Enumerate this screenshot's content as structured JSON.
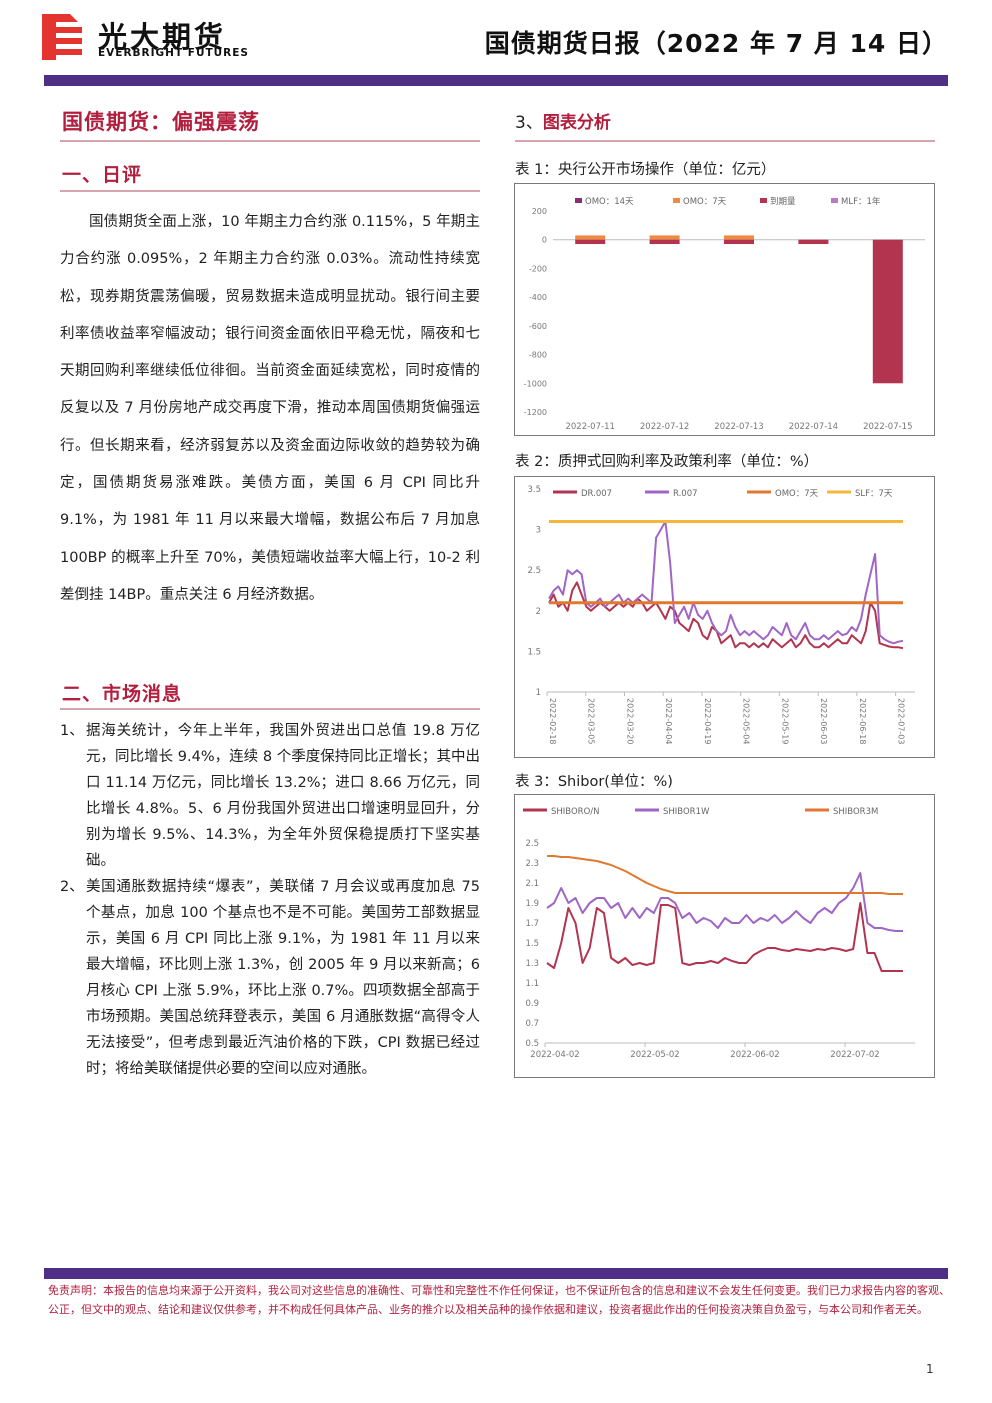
{
  "header": {
    "brand_cn": "光大期货",
    "brand_en": "EVERBRIGHT FUTURES",
    "doc_title": "国债期货日报（2022 年 7 月 14 日）"
  },
  "left": {
    "main_title": "国债期货：偏强震荡",
    "review_heading": "一、日评",
    "review_text": "国债期货全面上涨，10 年期主力合约涨 0.115%，5 年期主力合约涨 0.095%，2 年期主力合约涨 0.03%。流动性持续宽松，现券期货震荡偏暖，贸易数据未造成明显扰动。银行间主要利率债收益率窄幅波动；银行间资金面依旧平稳无忧，隔夜和七天期回购利率继续低位徘徊。当前资金面延续宽松，同时疫情的反复以及 7 月份房地产成交再度下滑，推动本周国债期货偏强运行。但长期来看，经济弱复苏以及资金面边际收敛的趋势较为确定，国债期货易涨难跌。美债方面，美国 6 月 CPI 同比升 9.1%，为 1981 年 11 月以来最大增幅，数据公布后 7 月加息 100BP 的概率上升至 70%，美债短端收益率大幅上行，10-2 利差倒挂 14BP。重点关注 6 月经济数据。",
    "news_heading": "二、市场消息",
    "news": [
      {
        "num": "1、",
        "text": "据海关统计，今年上半年，我国外贸进出口总值 19.8 万亿元，同比增长 9.4%，连续 8 个季度保持同比正增长；其中出口 11.14 万亿元，同比增长 13.2%；进口 8.66 万亿元，同比增长 4.8%。5、6 月份我国外贸进出口增速明显回升，分别为增长 9.5%、14.3%，为全年外贸保稳提质打下坚实基础。"
      },
      {
        "num": "2、",
        "text": "美国通胀数据持续“爆表”，美联储 7 月会议或再度加息 75 个基点，加息 100 个基点也不是不可能。美国劳工部数据显示，美国 6 月 CPI 同比上涨 9.1%，为 1981 年 11 月以来最大增幅，环比则上涨 1.3%，创 2005 年 9 月以来新高；6 月核心 CPI 上涨 5.9%，环比上涨 0.7%。四项数据全部高于市场预期。美国总统拜登表示，美国 6 月通胀数据“高得令人无法接受”，但考虑到最近汽油价格的下跌，CPI 数据已经过时；将给美联储提供必要的空间以应对通胀。"
      }
    ]
  },
  "right": {
    "section_num": "3、",
    "section_title": "图表分析"
  },
  "chart_data": [
    {
      "type": "bar",
      "title": "表 1：央行公开市场操作（单位：亿元）",
      "categories": [
        "2022-07-11",
        "2022-07-12",
        "2022-07-13",
        "2022-07-14",
        "2022-07-15"
      ],
      "series": [
        {
          "name": "OMO：14天",
          "color": "#8a2c78",
          "values": [
            0,
            0,
            0,
            0,
            0
          ]
        },
        {
          "name": "OMO：7天",
          "color": "#ef8a43",
          "values": [
            30,
            30,
            30,
            0,
            0
          ]
        },
        {
          "name": "到期量",
          "color": "#b2344f",
          "values": [
            -30,
            -30,
            -30,
            -30,
            -1000
          ]
        },
        {
          "name": "MLF：1年",
          "color": "#b77ac9",
          "values": [
            0,
            0,
            0,
            0,
            0
          ]
        }
      ],
      "ylim": [
        -1200,
        200
      ],
      "yticks": [
        200,
        0,
        -200,
        -400,
        -600,
        -800,
        -1000,
        -1200
      ],
      "legend": "top",
      "grid": false
    },
    {
      "type": "line",
      "title": "表 2：质押式回购利率及政策利率（单位：%）",
      "xticks": [
        "2022-02-18",
        "2022-03-05",
        "2022-03-20",
        "2022-04-04",
        "2022-04-19",
        "2022-05-04",
        "2022-05-19",
        "2022-06-03",
        "2022-06-18",
        "2022-07-03"
      ],
      "ylim": [
        1,
        3.5
      ],
      "yticks": [
        3.5,
        3,
        2.5,
        2,
        1.5,
        1
      ],
      "legend": "top",
      "series": [
        {
          "name": "DR.007",
          "color": "#b2344f",
          "values": [
            2.1,
            2.2,
            2.05,
            2.1,
            2.0,
            2.25,
            2.35,
            2.2,
            2.05,
            2.0,
            2.05,
            2.1,
            2.05,
            2.0,
            2.05,
            2.1,
            2.05,
            2.1,
            2.05,
            2.15,
            2.1,
            2.0,
            2.05,
            2.1,
            2.0,
            1.9,
            2.05,
            2.0,
            1.85,
            1.8,
            1.75,
            1.9,
            1.85,
            1.7,
            1.65,
            1.8,
            1.75,
            1.6,
            1.65,
            1.7,
            1.55,
            1.6,
            1.6,
            1.55,
            1.6,
            1.55,
            1.6,
            1.55,
            1.65,
            1.6,
            1.55,
            1.6,
            1.65,
            1.55,
            1.6,
            1.7,
            1.6,
            1.55,
            1.55,
            1.6,
            1.55,
            1.6,
            1.65,
            1.6,
            1.6,
            1.7,
            1.65,
            1.6,
            1.75,
            2.1,
            2.0,
            1.6,
            1.58,
            1.56,
            1.55,
            1.55,
            1.54
          ]
        },
        {
          "name": "R.007",
          "color": "#a066c5",
          "values": [
            2.15,
            2.25,
            2.3,
            2.2,
            2.5,
            2.45,
            2.5,
            2.45,
            2.1,
            2.05,
            2.1,
            2.15,
            2.05,
            2.1,
            2.15,
            2.2,
            2.1,
            2.15,
            2.1,
            2.15,
            2.2,
            2.15,
            2.1,
            2.9,
            3.0,
            3.1,
            2.6,
            1.85,
            1.95,
            2.05,
            1.9,
            2.1,
            1.95,
            1.9,
            2.0,
            1.85,
            1.75,
            1.7,
            1.75,
            1.95,
            1.8,
            1.7,
            1.75,
            1.7,
            1.75,
            1.7,
            1.65,
            1.7,
            1.8,
            1.75,
            1.7,
            1.85,
            1.7,
            1.65,
            1.75,
            1.85,
            1.7,
            1.65,
            1.65,
            1.7,
            1.65,
            1.7,
            1.75,
            1.7,
            1.72,
            1.8,
            1.75,
            1.9,
            2.2,
            2.45,
            2.7,
            1.7,
            1.65,
            1.62,
            1.6,
            1.62,
            1.63
          ]
        },
        {
          "name": "OMO：7天",
          "color": "#e07830",
          "values": [
            2.1,
            2.1
          ]
        },
        {
          "name": "SLF：7天",
          "color": "#f5b63b",
          "values": [
            3.1,
            3.1
          ]
        }
      ]
    },
    {
      "type": "line",
      "title": "表 3：Shibor(单位：%)",
      "xticks": [
        "2022-04-02",
        "2022-05-02",
        "2022-06-02",
        "2022-07-02"
      ],
      "ylim": [
        0.5,
        2.5
      ],
      "yticks": [
        2.5,
        2.3,
        2.1,
        1.9,
        1.7,
        1.5,
        1.3,
        1.1,
        0.9,
        0.7,
        0.5
      ],
      "legend": "top",
      "series": [
        {
          "name": "SHIBORO/N",
          "color": "#b2344f",
          "values": [
            1.3,
            1.25,
            1.5,
            1.85,
            1.7,
            1.3,
            1.45,
            1.85,
            1.8,
            1.35,
            1.3,
            1.35,
            1.28,
            1.3,
            1.28,
            1.3,
            1.88,
            1.88,
            1.85,
            1.3,
            1.28,
            1.3,
            1.3,
            1.32,
            1.3,
            1.35,
            1.32,
            1.3,
            1.3,
            1.38,
            1.42,
            1.45,
            1.45,
            1.43,
            1.42,
            1.44,
            1.43,
            1.42,
            1.44,
            1.43,
            1.45,
            1.44,
            1.42,
            1.44,
            1.9,
            1.4,
            1.4,
            1.22,
            1.22,
            1.22,
            1.22
          ]
        },
        {
          "name": "SHIBOR1W",
          "color": "#a066c5",
          "values": [
            1.85,
            1.9,
            2.05,
            1.9,
            1.95,
            1.8,
            1.9,
            1.95,
            1.95,
            1.85,
            1.9,
            1.75,
            1.85,
            1.75,
            1.85,
            1.8,
            1.95,
            1.95,
            1.9,
            1.75,
            1.8,
            1.7,
            1.75,
            1.72,
            1.65,
            1.75,
            1.7,
            1.7,
            1.78,
            1.7,
            1.75,
            1.72,
            1.78,
            1.7,
            1.75,
            1.82,
            1.75,
            1.7,
            1.8,
            1.85,
            1.8,
            1.9,
            1.95,
            2.05,
            2.2,
            1.7,
            1.65,
            1.65,
            1.63,
            1.62,
            1.62
          ]
        },
        {
          "name": "SHIBOR3M",
          "color": "#e07830",
          "values": [
            2.37,
            2.37,
            2.36,
            2.36,
            2.35,
            2.34,
            2.33,
            2.32,
            2.3,
            2.28,
            2.25,
            2.22,
            2.18,
            2.14,
            2.1,
            2.07,
            2.04,
            2.02,
            2.0,
            2.0,
            2.0,
            2.0,
            2.0,
            2.0,
            2.0,
            2.0,
            2.0,
            2.0,
            2.0,
            2.0,
            2.0,
            2.0,
            2.0,
            2.0,
            2.0,
            2.0,
            2.0,
            2.0,
            2.0,
            2.0,
            2.0,
            2.0,
            2.0,
            2.0,
            2.0,
            2.0,
            2.0,
            2.0,
            1.99,
            1.99,
            1.99
          ]
        }
      ]
    }
  ],
  "footer": {
    "disclaimer": "免责声明：本报告的信息均来源于公开资料，我公司对这些信息的准确性、可靠性和完整性不作任何保证，也不保证所包含的信息和建议不会发生任何变更。我们已力求报告内容的客观、公正，但文中的观点、结论和建议仅供参考，并不构成任何具体产品、业务的推介以及相关品种的操作依据和建议，投资者据此作出的任何投资决策自负盈亏，与本公司和作者无关。",
    "page_number": "1"
  }
}
